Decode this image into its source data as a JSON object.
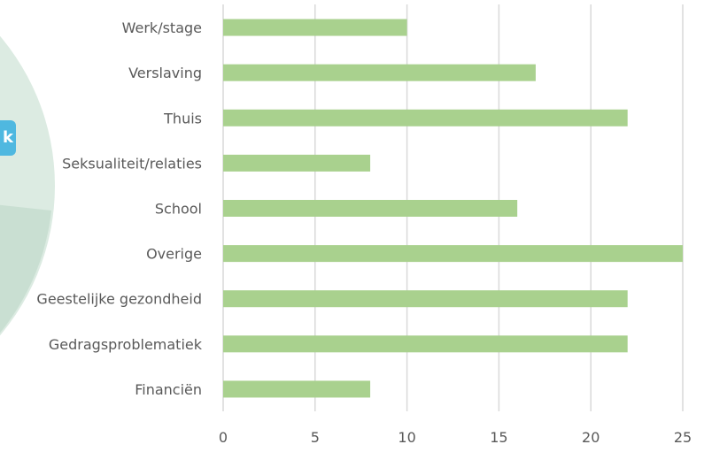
{
  "badge": {
    "text": "k",
    "color": "#4fb8e0"
  },
  "background": {
    "circle_colors": [
      "#dcebe2",
      "#c9dfd2",
      "#d6e7dc"
    ]
  },
  "chart_data": {
    "type": "bar",
    "orientation": "horizontal",
    "title": "",
    "xlabel": "",
    "ylabel": "",
    "categories": [
      "Werk/stage",
      "Verslaving",
      "Thuis",
      "Seksualiteit/relaties",
      "School",
      "Overige",
      "Geestelijke gezondheid",
      "Gedragsproblematiek",
      "Financiën"
    ],
    "values": [
      10,
      17,
      22,
      8,
      16,
      25,
      22,
      22,
      8
    ],
    "xlim": [
      0,
      25
    ],
    "xticks": [
      0,
      5,
      10,
      15,
      20,
      25
    ],
    "grid": "vertical",
    "legend": "none",
    "bar_color": "#a9d18e",
    "grid_color": "#d9d9d9"
  }
}
